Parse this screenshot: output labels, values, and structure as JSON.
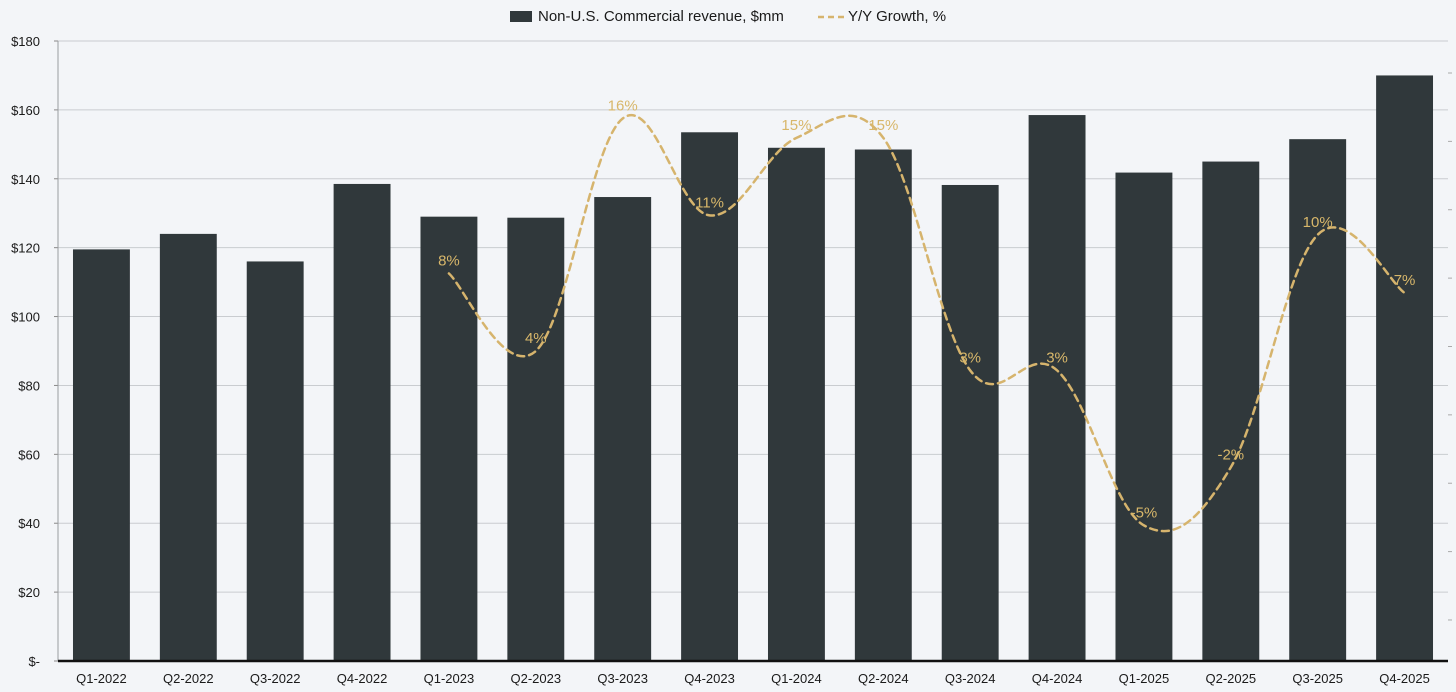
{
  "chart_data": {
    "type": "bar",
    "categories": [
      "Q1-2022",
      "Q2-2022",
      "Q3-2022",
      "Q4-2022",
      "Q1-2023",
      "Q2-2023",
      "Q3-2023",
      "Q4-2023",
      "Q1-2024",
      "Q2-2024",
      "Q3-2024",
      "Q4-2024",
      "Q1-2025",
      "Q2-2025",
      "Q3-2025",
      "Q4-2025"
    ],
    "series": [
      {
        "name": "Non-U.S. Commercial revenue, $mm",
        "type": "bar",
        "axis": "left",
        "color": "#30383b",
        "values": [
          119.5,
          124,
          116,
          138.5,
          129,
          128.7,
          134.7,
          153.5,
          149,
          148.5,
          138.2,
          158.5,
          141.8,
          145,
          151.5,
          170
        ]
      },
      {
        "name": "Y/Y Growth, %",
        "type": "line",
        "style": "dashed-smooth",
        "axis": "right",
        "color": "#d6b46d",
        "values": [
          null,
          null,
          null,
          null,
          8,
          4,
          16,
          11,
          15,
          15,
          3,
          3,
          -5,
          -2,
          10,
          7
        ],
        "labels": [
          null,
          null,
          null,
          null,
          "8%",
          "4%",
          "16%",
          "11%",
          "15%",
          "15%",
          "3%",
          "3%",
          "-5%",
          "-2%",
          "10%",
          "7%"
        ]
      }
    ],
    "y_left": {
      "ylim": [
        0,
        180
      ],
      "ticks": [
        0,
        20,
        40,
        60,
        80,
        100,
        120,
        140,
        160,
        180
      ],
      "tick_labels": [
        "$-",
        "$20",
        "$40",
        "$60",
        "$80",
        "$100",
        "$120",
        "$140",
        "$160",
        "$180"
      ]
    },
    "y_right": {
      "ylim": [
        -12,
        20
      ]
    },
    "grid": true,
    "legend_position": "top-center",
    "title": "",
    "xlabel": "",
    "ylabel": ""
  }
}
